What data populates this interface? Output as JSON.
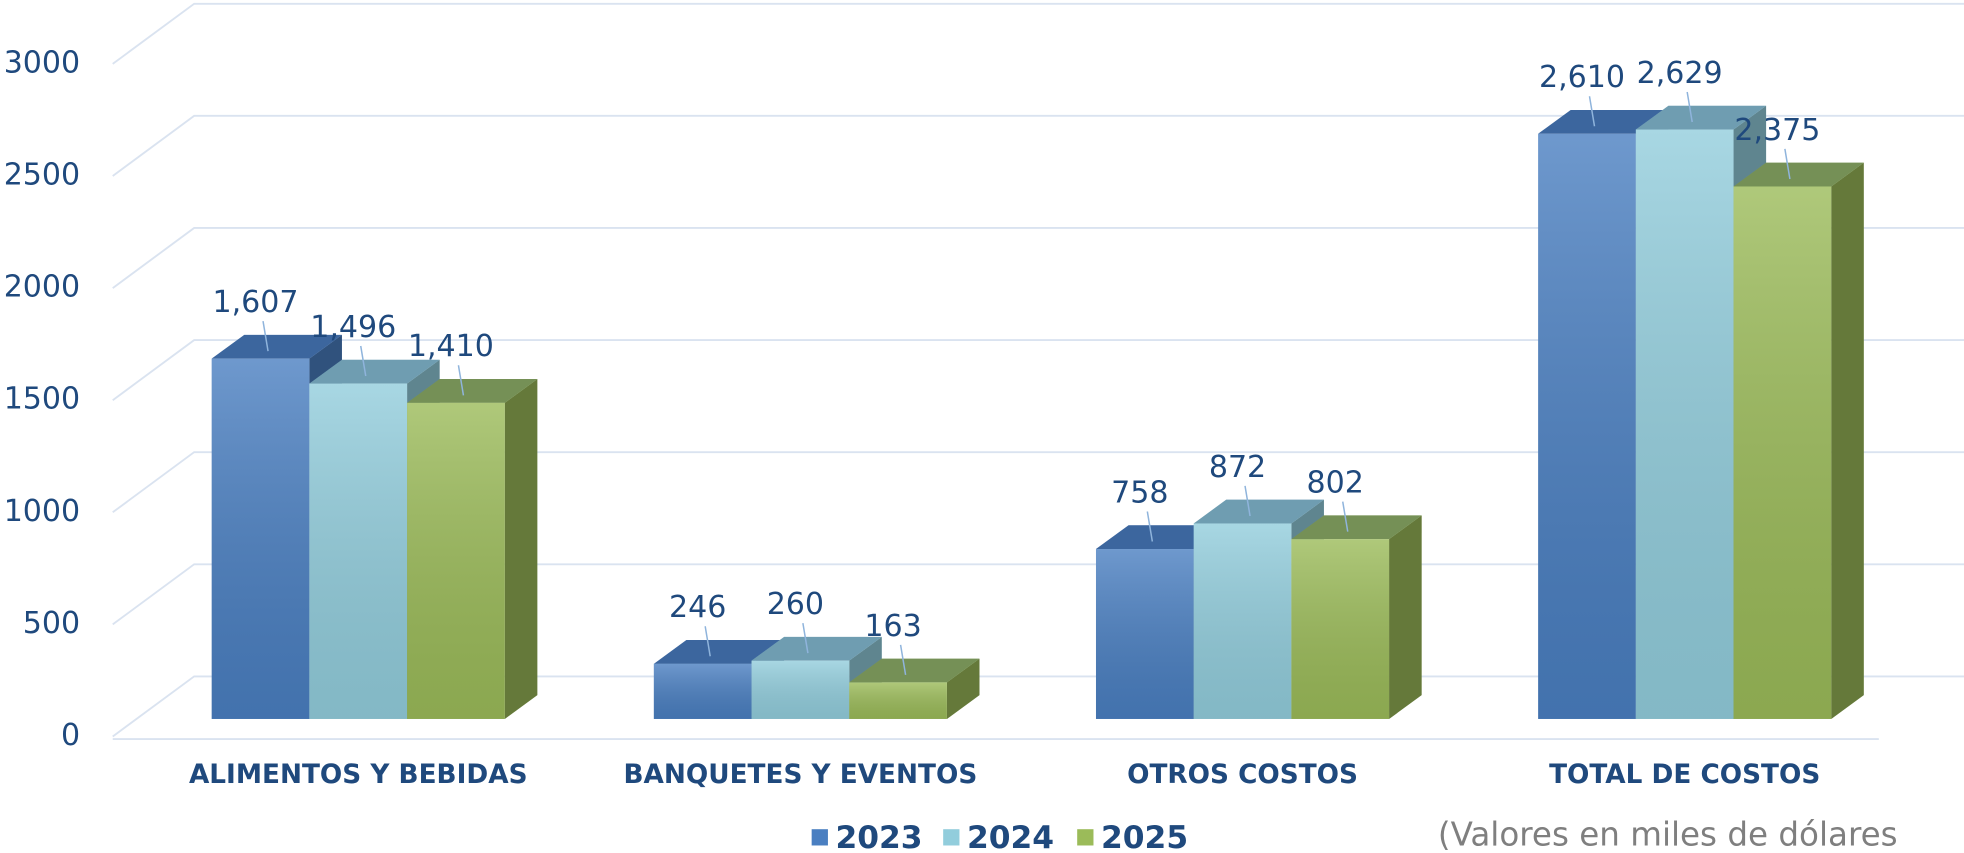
{
  "chart_data": {
    "type": "bar3d",
    "categories": [
      "ALIMENTOS Y BEBIDAS",
      "BANQUETES Y EVENTOS",
      "OTROS COSTOS",
      "TOTAL DE COSTOS"
    ],
    "series": [
      {
        "name": "2023",
        "color": "#4a7fc1",
        "values": [
          1607,
          246,
          758,
          2610
        ],
        "value_labels": [
          "1,607",
          "246",
          "758",
          "2,610"
        ]
      },
      {
        "name": "2024",
        "color": "#92cddc",
        "values": [
          1496,
          260,
          872,
          2629
        ],
        "value_labels": [
          "1,496",
          "260",
          "872",
          "2,629"
        ]
      },
      {
        "name": "2025",
        "color": "#9bbb59",
        "values": [
          1410,
          163,
          802,
          2375
        ],
        "value_labels": [
          "1,410",
          "163",
          "802",
          "2,375"
        ]
      }
    ],
    "ylim": [
      0,
      3000
    ],
    "yticks": [
      0,
      500,
      1000,
      1500,
      2000,
      2500,
      3000
    ],
    "grid": true,
    "legend": "bottom",
    "annotation": "(Valores en miles de dólares"
  }
}
